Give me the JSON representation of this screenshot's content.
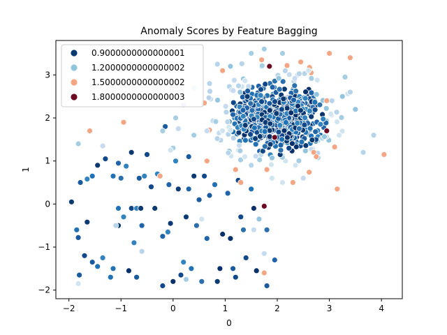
{
  "chart_data": {
    "type": "scatter",
    "title": "Anomaly Scores by Feature Bagging",
    "xlabel": "0",
    "ylabel": "1",
    "xlim": [
      -2.25,
      4.4
    ],
    "ylim": [
      -2.2,
      3.8
    ],
    "xticks": [
      -2,
      -1,
      0,
      1,
      2,
      3,
      4
    ],
    "yticks": [
      -2,
      -1,
      0,
      1,
      2,
      3
    ],
    "grid": false,
    "legend_position": "top-left",
    "legend": [
      {
        "label": "0.9000000000000001",
        "color": "#0b3a73"
      },
      {
        "label": "1.2000000000000002",
        "color": "#94c5df"
      },
      {
        "label": "1.5000000000000002",
        "color": "#f3a584"
      },
      {
        "label": "1.8000000000000003",
        "color": "#6b0a22"
      }
    ],
    "cluster": {
      "center": [
        2.0,
        2.0
      ],
      "spread": [
        0.45,
        0.42
      ],
      "count": 700
    },
    "points": [
      [
        -1.95,
        0.05,
        0.9
      ],
      [
        -1.85,
        -0.6,
        0.9
      ],
      [
        -1.82,
        -0.78,
        0.9
      ],
      [
        -1.78,
        0.5,
        0.9
      ],
      [
        -1.65,
        0.58,
        0.9
      ],
      [
        -1.65,
        -0.42,
        0.9
      ],
      [
        -1.7,
        -1.2,
        0.9
      ],
      [
        -1.8,
        -1.65,
        0.9
      ],
      [
        -1.82,
        -1.85,
        1.2
      ],
      [
        -1.82,
        1.4,
        1.2
      ],
      [
        -1.55,
        0.65,
        0.9
      ],
      [
        -1.55,
        -1.35,
        0.9
      ],
      [
        -1.45,
        0.9,
        0.9
      ],
      [
        -1.45,
        -1.45,
        0.9
      ],
      [
        -1.35,
        1.35,
        1.2
      ],
      [
        -1.35,
        -1.25,
        0.9
      ],
      [
        -1.3,
        1.05,
        0.9
      ],
      [
        -1.2,
        -1.7,
        0.9
      ],
      [
        -1.15,
        0.65,
        0.9
      ],
      [
        -1.15,
        -1.5,
        0.9
      ],
      [
        -1.05,
        0.95,
        0.9
      ],
      [
        -1.05,
        -0.5,
        0.9
      ],
      [
        -1.05,
        -0.1,
        0.9
      ],
      [
        -1.0,
        0.6,
        0.9
      ],
      [
        -0.95,
        -0.3,
        0.9
      ],
      [
        -0.9,
        0.88,
        0.9
      ],
      [
        -0.85,
        -1.55,
        0.9
      ],
      [
        -0.8,
        -0.1,
        0.9
      ],
      [
        -0.8,
        1.2,
        0.9
      ],
      [
        -0.75,
        -0.9,
        0.9
      ],
      [
        -0.7,
        -0.1,
        0.9
      ],
      [
        -0.7,
        -1.7,
        0.9
      ],
      [
        -0.65,
        0.6,
        0.9
      ],
      [
        -0.62,
        -0.1,
        0.9
      ],
      [
        -0.6,
        -0.5,
        0.9
      ],
      [
        -0.6,
        -1.1,
        1.2
      ],
      [
        -0.55,
        0.65,
        0.9
      ],
      [
        -0.5,
        1.15,
        0.9
      ],
      [
        -0.42,
        0.4,
        0.9
      ],
      [
        -0.35,
        -0.1,
        0.9
      ],
      [
        -0.3,
        0.7,
        0.9
      ],
      [
        -0.2,
        -0.75,
        0.9
      ],
      [
        -0.2,
        -1.9,
        0.9
      ],
      [
        -0.15,
        1.8,
        0.9
      ],
      [
        -0.1,
        -0.65,
        0.9
      ],
      [
        -0.08,
        0.45,
        0.9
      ],
      [
        -0.05,
        -0.45,
        0.9
      ],
      [
        0.0,
        -1.8,
        0.9
      ],
      [
        0.0,
        1.3,
        1.2
      ],
      [
        0.05,
        1.0,
        0.9
      ],
      [
        0.1,
        0.35,
        0.9
      ],
      [
        0.15,
        -1.65,
        0.9
      ],
      [
        0.2,
        -1.35,
        0.9
      ],
      [
        0.25,
        -0.3,
        0.9
      ],
      [
        0.3,
        1.1,
        0.9
      ],
      [
        0.3,
        0.35,
        0.9
      ],
      [
        0.35,
        -1.5,
        0.9
      ],
      [
        0.4,
        0.65,
        0.9
      ],
      [
        0.45,
        -0.5,
        0.9
      ],
      [
        0.5,
        0.1,
        0.9
      ],
      [
        0.55,
        -1.8,
        0.9
      ],
      [
        0.6,
        0.65,
        0.9
      ],
      [
        0.65,
        -0.8,
        0.9
      ],
      [
        0.7,
        0.2,
        0.9
      ],
      [
        0.8,
        0.45,
        0.9
      ],
      [
        0.85,
        -1.8,
        0.9
      ],
      [
        0.9,
        -1.5,
        0.9
      ],
      [
        0.95,
        -0.7,
        0.9
      ],
      [
        1.05,
        0.25,
        0.9
      ],
      [
        1.1,
        -0.8,
        0.9
      ],
      [
        1.15,
        -1.5,
        0.9
      ],
      [
        1.2,
        -1.7,
        0.9
      ],
      [
        1.25,
        0.55,
        0.9
      ],
      [
        1.3,
        -0.3,
        0.9
      ],
      [
        1.35,
        -0.6,
        0.9
      ],
      [
        1.4,
        -1.25,
        0.9
      ],
      [
        1.5,
        0.35,
        0.9
      ],
      [
        1.55,
        -0.1,
        0.9
      ],
      [
        1.6,
        -1.55,
        0.9
      ],
      [
        1.75,
        -0.05,
        0.9
      ],
      [
        1.8,
        -0.6,
        0.9
      ],
      [
        1.8,
        -1.9,
        0.9
      ],
      [
        1.95,
        -1.3,
        0.9
      ],
      [
        1.75,
        -1.15,
        1.2
      ],
      [
        0.1,
        1.75,
        1.2
      ],
      [
        0.55,
        -0.35,
        1.2
      ],
      [
        0.25,
        -1.75,
        1.2
      ],
      [
        -0.2,
        1.7,
        1.2
      ],
      [
        1.55,
        -0.6,
        1.2
      ],
      [
        1.65,
        -0.35,
        1.2
      ],
      [
        -1.1,
        -0.5,
        1.2
      ],
      [
        -0.05,
        1.25,
        1.2
      ],
      [
        -0.95,
        1.9,
        1.5
      ],
      [
        -1.6,
        1.7,
        1.5
      ],
      [
        -0.25,
        0.65,
        1.5
      ],
      [
        0.65,
        1.0,
        1.5
      ],
      [
        1.3,
        0.5,
        1.5
      ],
      [
        1.75,
        -1.6,
        1.5
      ],
      [
        1.8,
        0.8,
        1.5
      ],
      [
        2.3,
        0.5,
        1.5
      ],
      [
        2.45,
        3.3,
        1.5
      ],
      [
        2.65,
        3.05,
        1.5
      ],
      [
        3.0,
        3.5,
        1.5
      ],
      [
        3.15,
        0.35,
        1.5
      ],
      [
        3.4,
        3.4,
        1.5
      ],
      [
        4.05,
        1.15,
        1.5
      ],
      [
        2.7,
        1.2,
        1.5
      ],
      [
        2.75,
        1.1,
        1.5
      ],
      [
        1.7,
        3.35,
        1.5
      ],
      [
        0.95,
        3.1,
        1.5
      ],
      [
        1.2,
        0.8,
        1.5
      ],
      [
        2.95,
        2.4,
        1.5
      ],
      [
        1.75,
        -0.05,
        1.8
      ],
      [
        1.95,
        1.55,
        1.8
      ],
      [
        2.95,
        1.7,
        1.8
      ],
      [
        1.85,
        3.2,
        1.8
      ],
      [
        3.05,
        2.4,
        1.2
      ],
      [
        3.25,
        2.5,
        1.2
      ],
      [
        3.5,
        2.2,
        1.2
      ],
      [
        3.65,
        1.2,
        1.2
      ],
      [
        3.85,
        1.6,
        1.2
      ],
      [
        3.3,
        2.95,
        1.2
      ],
      [
        3.4,
        2.6,
        1.2
      ],
      [
        2.6,
        3.1,
        1.2
      ],
      [
        2.1,
        3.5,
        1.2
      ],
      [
        1.75,
        3.6,
        1.2
      ],
      [
        1.5,
        3.5,
        1.2
      ],
      [
        1.1,
        3.2,
        1.2
      ],
      [
        0.85,
        3.25,
        1.2
      ],
      [
        0.7,
        2.8,
        1.2
      ],
      [
        0.4,
        2.7,
        1.2
      ],
      [
        0.2,
        2.3,
        1.2
      ],
      [
        0.05,
        2.0,
        1.2
      ],
      [
        0.4,
        1.6,
        1.2
      ],
      [
        0.65,
        1.7,
        1.2
      ],
      [
        2.35,
        0.9,
        1.2
      ],
      [
        2.5,
        0.6,
        1.2
      ],
      [
        2.1,
        0.5,
        1.2
      ],
      [
        1.9,
        0.6,
        1.2
      ],
      [
        1.5,
        0.9,
        1.2
      ]
    ]
  }
}
